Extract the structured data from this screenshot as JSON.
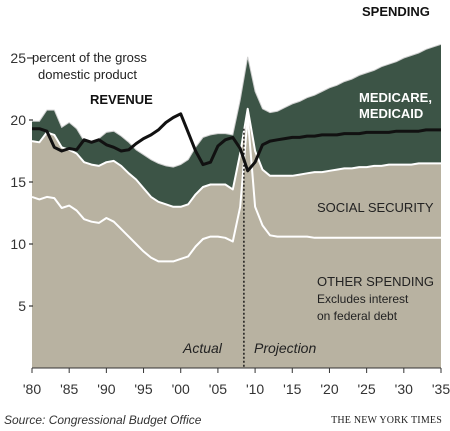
{
  "chart_data": {
    "type": "area",
    "ylabel_line1": "percent of the gross",
    "ylabel_line2": "domestic product",
    "ylim": [
      0,
      27
    ],
    "xlim": [
      1980,
      2035
    ],
    "x_ticks": [
      {
        "year": 1980,
        "label": "'80"
      },
      {
        "year": 1985,
        "label": "'85"
      },
      {
        "year": 1990,
        "label": "'90"
      },
      {
        "year": 1995,
        "label": "'95"
      },
      {
        "year": 2000,
        "label": "'00"
      },
      {
        "year": 2005,
        "label": "'05"
      },
      {
        "year": 2010,
        "label": "'10"
      },
      {
        "year": 2015,
        "label": "'15"
      },
      {
        "year": 2020,
        "label": "'20"
      },
      {
        "year": 2025,
        "label": "'25"
      },
      {
        "year": 2030,
        "label": "'30"
      },
      {
        "year": 2035,
        "label": "'35"
      }
    ],
    "y_ticks": [
      {
        "value": 5,
        "label": "5"
      },
      {
        "value": 10,
        "label": "10"
      },
      {
        "value": 15,
        "label": "15"
      },
      {
        "value": 20,
        "label": "20"
      },
      {
        "value": 25,
        "label": "25—"
      }
    ],
    "x": [
      1980,
      1981,
      1982,
      1983,
      1984,
      1985,
      1986,
      1987,
      1988,
      1989,
      1990,
      1991,
      1992,
      1993,
      1994,
      1995,
      1996,
      1997,
      1998,
      1999,
      2000,
      2001,
      2002,
      2003,
      2004,
      2005,
      2006,
      2007,
      2008,
      2009,
      2010,
      2011,
      2012,
      2013,
      2014,
      2015,
      2016,
      2017,
      2018,
      2019,
      2020,
      2021,
      2022,
      2023,
      2024,
      2025,
      2026,
      2027,
      2028,
      2029,
      2030,
      2031,
      2032,
      2033,
      2034,
      2035
    ],
    "series": [
      {
        "name": "OTHER SPENDING",
        "values": [
          13.8,
          13.6,
          13.8,
          13.7,
          12.9,
          13.1,
          12.7,
          12.0,
          11.8,
          11.7,
          12.1,
          11.8,
          11.2,
          10.6,
          10.0,
          9.4,
          8.9,
          8.6,
          8.6,
          8.6,
          8.8,
          9.0,
          9.8,
          10.4,
          10.6,
          10.6,
          10.5,
          10.2,
          13.0,
          20.3,
          13.0,
          11.5,
          10.7,
          10.6,
          10.6,
          10.6,
          10.6,
          10.6,
          10.5,
          10.5,
          10.5,
          10.5,
          10.5,
          10.5,
          10.5,
          10.5,
          10.5,
          10.5,
          10.5,
          10.5,
          10.5,
          10.5,
          10.5,
          10.5,
          10.5,
          10.5
        ]
      },
      {
        "name": "SOCIAL SECURITY",
        "values": [
          18.3,
          18.2,
          19.0,
          18.8,
          17.8,
          17.6,
          17.3,
          16.6,
          16.4,
          16.3,
          16.6,
          16.7,
          16.3,
          15.7,
          15.2,
          14.5,
          13.8,
          13.4,
          13.2,
          13.0,
          13.0,
          13.2,
          14.0,
          14.6,
          14.8,
          14.8,
          14.8,
          14.4,
          17.3,
          20.9,
          17.5,
          16.0,
          15.5,
          15.5,
          15.5,
          15.5,
          15.6,
          15.7,
          15.8,
          15.8,
          15.9,
          16.0,
          16.1,
          16.1,
          16.2,
          16.2,
          16.3,
          16.3,
          16.4,
          16.4,
          16.4,
          16.4,
          16.5,
          16.5,
          16.5,
          16.5
        ]
      },
      {
        "name": "MEDICARE, MEDICAID",
        "values": [
          19.9,
          19.9,
          20.8,
          20.8,
          19.4,
          19.8,
          19.3,
          18.3,
          18.3,
          18.5,
          19.0,
          19.1,
          18.7,
          18.2,
          17.6,
          17.2,
          16.8,
          16.5,
          16.3,
          16.2,
          16.4,
          16.8,
          17.8,
          18.6,
          18.8,
          18.9,
          18.9,
          18.8,
          21.6,
          25.1,
          22.3,
          20.9,
          20.6,
          20.7,
          21.0,
          21.3,
          21.5,
          21.8,
          22.0,
          22.3,
          22.6,
          22.8,
          23.1,
          23.3,
          23.6,
          23.8,
          24.0,
          24.3,
          24.5,
          24.7,
          25.0,
          25.2,
          25.4,
          25.7,
          25.9,
          26.1
        ]
      },
      {
        "name": "REVENUE",
        "values": [
          19.3,
          19.3,
          19.1,
          17.8,
          17.5,
          17.7,
          17.6,
          18.4,
          18.2,
          18.4,
          18.0,
          17.8,
          17.5,
          17.6,
          18.1,
          18.5,
          18.8,
          19.2,
          19.8,
          20.2,
          20.5,
          19.0,
          17.5,
          16.4,
          16.6,
          17.9,
          18.4,
          18.6,
          17.7,
          15.9,
          16.6,
          18.0,
          18.3,
          18.4,
          18.5,
          18.6,
          18.6,
          18.7,
          18.7,
          18.8,
          18.8,
          18.8,
          18.9,
          18.9,
          18.9,
          19.0,
          19.0,
          19.0,
          19.0,
          19.1,
          19.1,
          19.1,
          19.1,
          19.2,
          19.2,
          19.2
        ]
      }
    ],
    "actual_projection_split_year": 2008.5,
    "annotations": {
      "spending": "SPENDING",
      "revenue": "REVENUE",
      "medicare_line1": "MEDICARE,",
      "medicare_line2": "MEDICAID",
      "social_security": "SOCIAL SECURITY",
      "other_line1": "OTHER SPENDING",
      "other_line2": "Excludes interest",
      "other_line3": "on federal debt",
      "actual": "Actual",
      "projection": "Projection"
    },
    "colors": {
      "base_fill": "#b8b2a1",
      "medicare_fill": "#3c5446",
      "revenue_line": "#111111",
      "boundary_line": "#ffffff"
    }
  },
  "source": "Source: Congressional Budget Office",
  "credit": "THE NEW YORK TIMES"
}
